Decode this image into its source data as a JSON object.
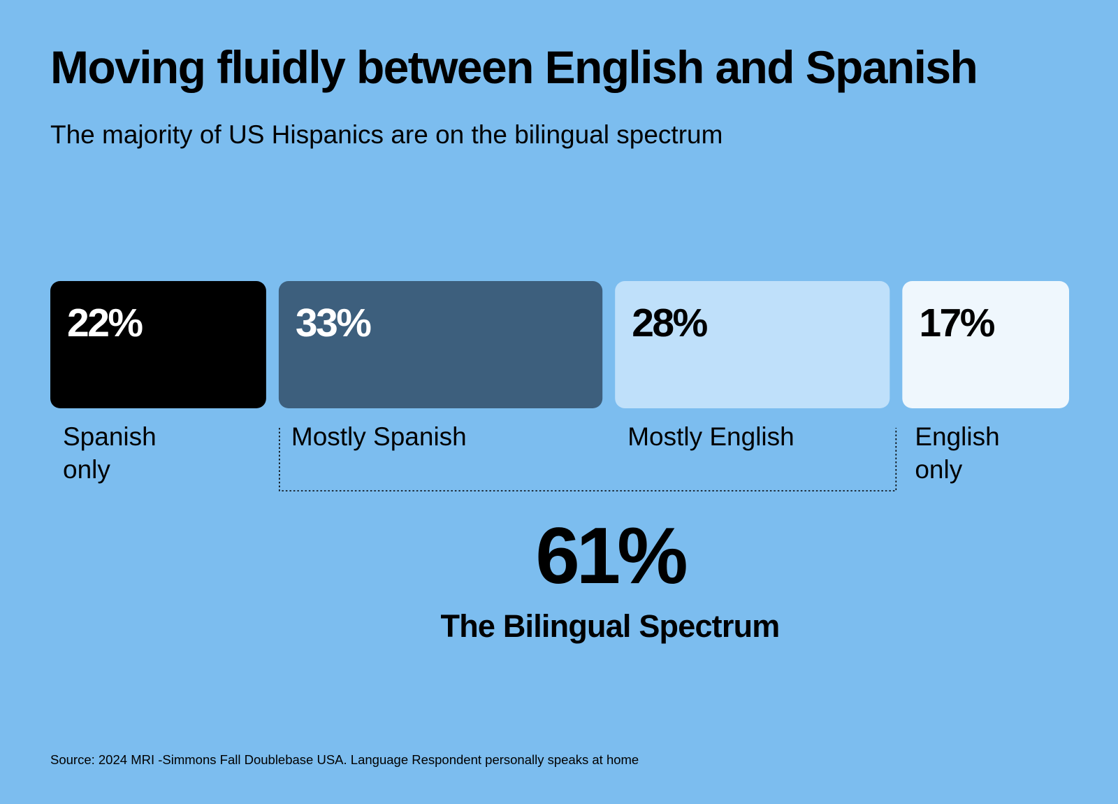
{
  "title": "Moving fluidly between English and Spanish",
  "subtitle": "The majority of US Hispanics are on the bilingual spectrum",
  "chart_data": {
    "type": "bar",
    "orientation": "horizontal-stacked",
    "categories": [
      "Spanish only",
      "Mostly Spanish",
      "Mostly English",
      "English only"
    ],
    "label_lines": [
      [
        "Spanish",
        "only"
      ],
      [
        "Mostly Spanish"
      ],
      [
        "Mostly English"
      ],
      [
        "English",
        "only"
      ]
    ],
    "values": [
      22,
      33,
      28,
      17
    ],
    "value_labels": [
      "22%",
      "33%",
      "28%",
      "17%"
    ],
    "colors": [
      "#000000",
      "#3d5f7d",
      "#bfe0fa",
      "#eff7fd"
    ],
    "text_colors": [
      "#ffffff",
      "#ffffff",
      "#000000",
      "#000000"
    ],
    "bracket": {
      "groups": [
        "Mostly Spanish",
        "Mostly English"
      ],
      "value": "61%",
      "label": "The Bilingual Spectrum"
    }
  },
  "source": "Source: 2024 MRI -Simmons Fall Doublebase USA. Language Respondent personally speaks at home"
}
